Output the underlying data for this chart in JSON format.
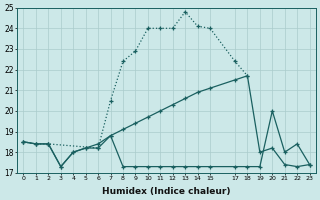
{
  "xlabel": "Humidex (Indice chaleur)",
  "background_color": "#cce8e8",
  "grid_color": "#aacccc",
  "line_color": "#1a6060",
  "line1_x": [
    0,
    1,
    2,
    6,
    7,
    8,
    9,
    10,
    11,
    12,
    13,
    14,
    15,
    17,
    18
  ],
  "line1_y": [
    18.5,
    18.4,
    18.4,
    18.2,
    20.5,
    22.4,
    22.9,
    24.0,
    24.0,
    24.0,
    24.8,
    24.1,
    24.0,
    22.4,
    21.7
  ],
  "line2_x": [
    0,
    1,
    2,
    3,
    4,
    5,
    6,
    7,
    8,
    9,
    10,
    11,
    12,
    13,
    14,
    15,
    17,
    18,
    19,
    20,
    21,
    22,
    23
  ],
  "line2_y": [
    18.5,
    18.4,
    18.4,
    17.3,
    18.0,
    18.2,
    18.4,
    18.8,
    19.1,
    19.4,
    19.7,
    20.0,
    20.3,
    20.6,
    20.9,
    21.1,
    21.5,
    21.7,
    18.0,
    18.2,
    17.4,
    17.3,
    17.4
  ],
  "line3_x": [
    0,
    1,
    2,
    3,
    4,
    5,
    6,
    7,
    8,
    9,
    10,
    11,
    12,
    13,
    14,
    15,
    17,
    18,
    19,
    20,
    21,
    22,
    23
  ],
  "line3_y": [
    18.5,
    18.4,
    18.4,
    17.3,
    18.0,
    18.2,
    18.2,
    18.8,
    17.3,
    17.3,
    17.3,
    17.3,
    17.3,
    17.3,
    17.3,
    17.3,
    17.3,
    17.3,
    17.3,
    20.0,
    18.0,
    18.4,
    17.4
  ],
  "ylim": [
    17,
    25
  ],
  "yticks": [
    17,
    18,
    19,
    20,
    21,
    22,
    23,
    24,
    25
  ],
  "xticks": [
    0,
    1,
    2,
    3,
    4,
    5,
    6,
    7,
    8,
    9,
    10,
    11,
    12,
    13,
    14,
    15,
    17,
    18,
    19,
    20,
    21,
    22,
    23
  ],
  "xlim": [
    -0.5,
    23.5
  ]
}
